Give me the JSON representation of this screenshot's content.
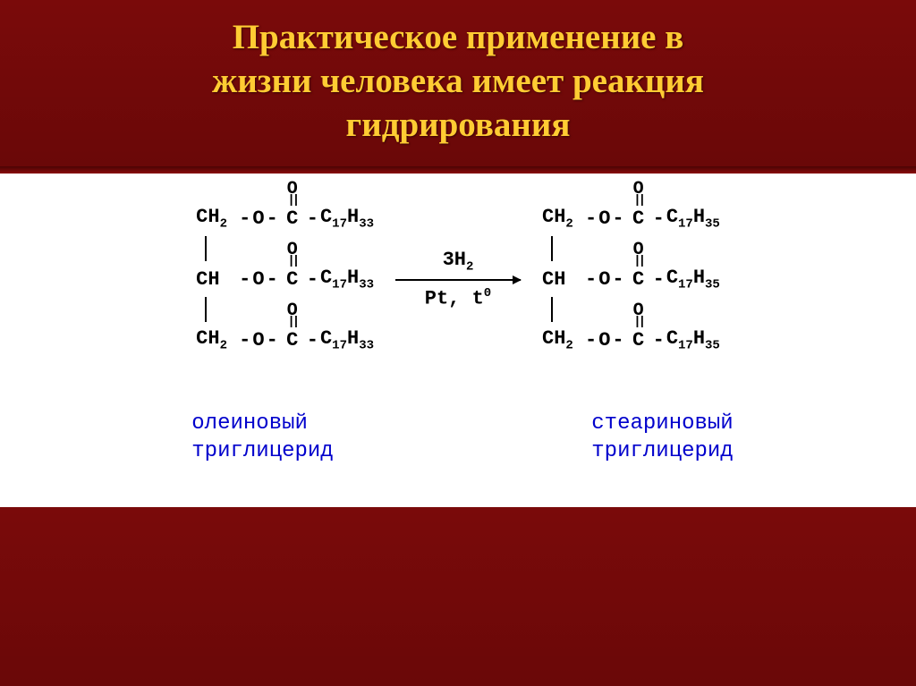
{
  "title_line1": "Практическое применение в",
  "title_line2": "жизни человека имеет реакция",
  "title_line3": "гидрирования",
  "reaction": {
    "type": "chemical-equation",
    "reactant": {
      "name_line1": "олеиновый",
      "name_line2": "триглицерид",
      "chain1": "CH",
      "chain1_sub": "2",
      "chain2": "CH",
      "chain3": "CH",
      "chain3_sub": "2",
      "tail": "C",
      "tail_sub1": "17",
      "tail_h": "H",
      "tail_sub2": "33"
    },
    "arrow": {
      "top": "3H",
      "top_sub": "2",
      "bottom_pt": "Pt,",
      "bottom_t": " t",
      "bottom_sup": "0"
    },
    "product": {
      "name_line1": "стеариновый",
      "name_line2": "триглицерид",
      "chain1": "CH",
      "chain1_sub": "2",
      "chain2": "CH",
      "chain3": "CH",
      "chain3_sub": "2",
      "tail": "C",
      "tail_sub1": "17",
      "tail_h": "H",
      "tail_sub2": "35"
    },
    "colors": {
      "header_bg": "#6a0808",
      "header_text": "#ffcc33",
      "formula_text": "#000000",
      "label_text": "#0000cc",
      "background": "#ffffff"
    },
    "fonts": {
      "title_size_pt": 30,
      "formula_family": "Courier New",
      "formula_size_pt": 17,
      "label_size_pt": 18
    }
  }
}
